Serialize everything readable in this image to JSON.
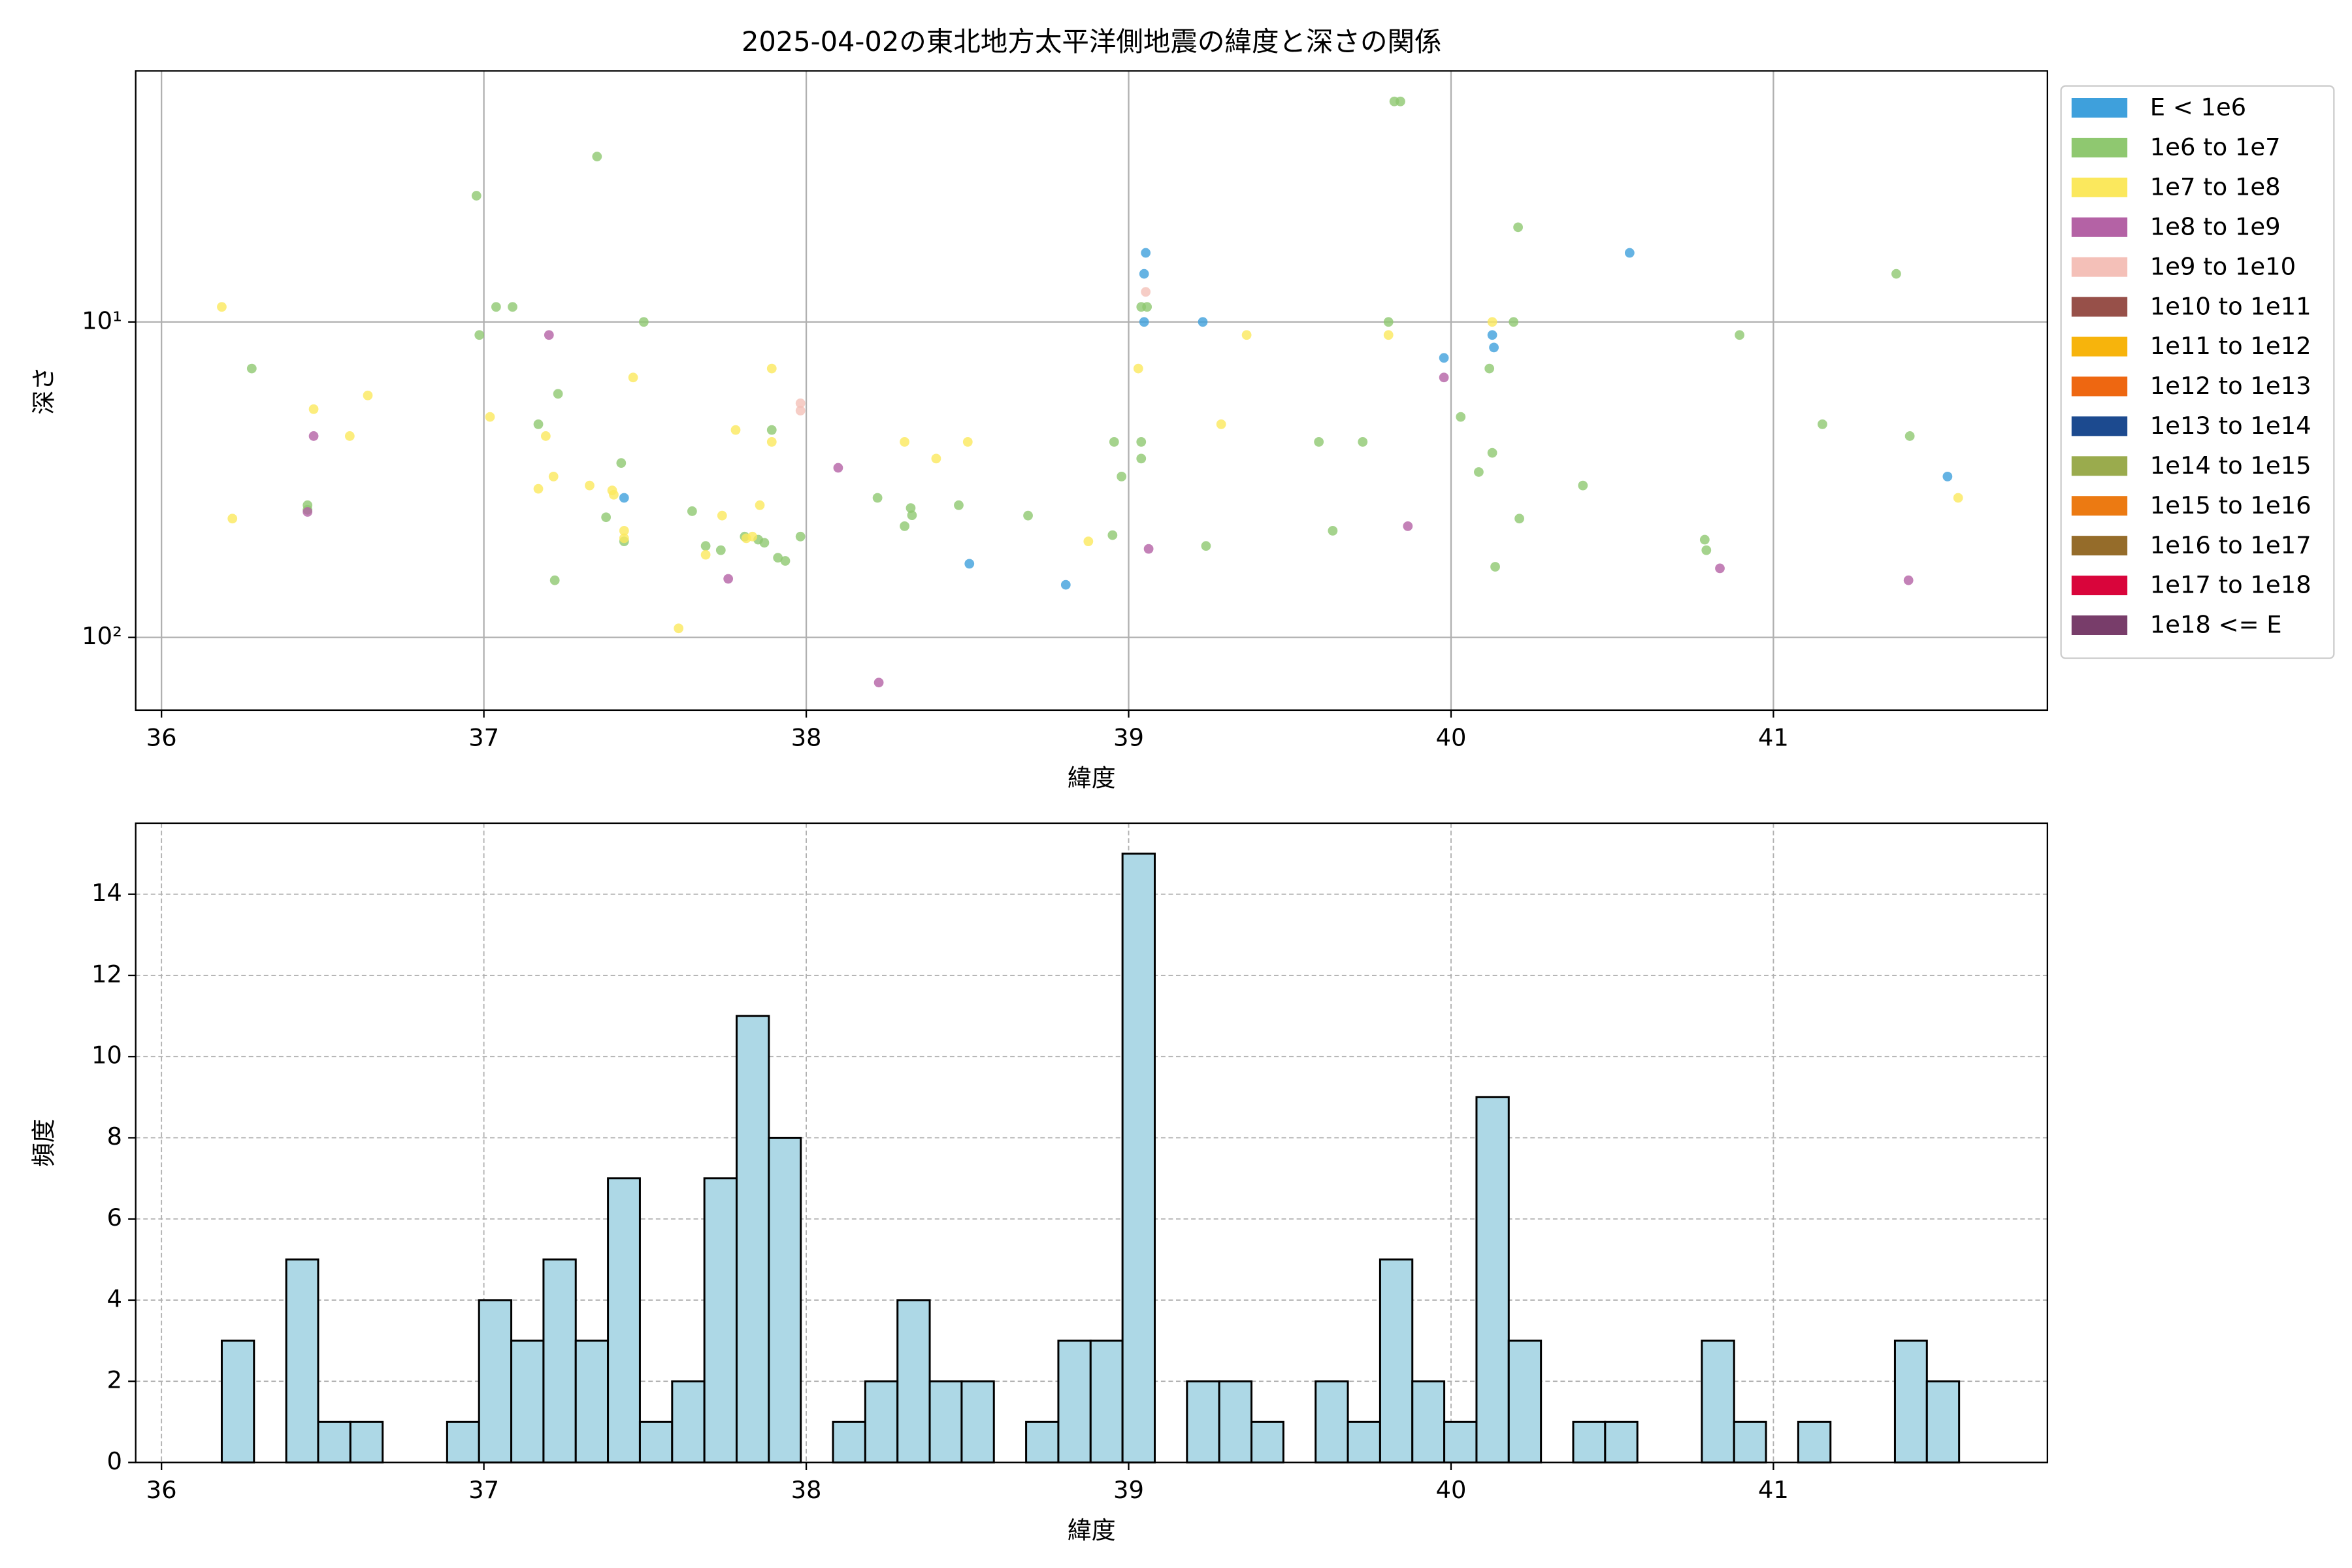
{
  "chart_data": [
    {
      "type": "scatter",
      "title": "2025-04-02の東北地方太平洋側地震の緯度と深さの関係",
      "xlabel": "緯度",
      "ylabel": "深さ",
      "xlim": [
        35.92,
        41.85
      ],
      "xticks": [
        36,
        37,
        38,
        39,
        40,
        41
      ],
      "ylim": [
        1.6,
        170
      ],
      "y_log": true,
      "y_inverted": true,
      "yticks": [
        {
          "value": 10,
          "label": "10¹"
        },
        {
          "value": 100,
          "label": "10²"
        }
      ],
      "grid": true,
      "legend": "outside right",
      "series": [
        {
          "name": "E < 1e6",
          "color": "#3ea0dc",
          "x": [
            37.435,
            38.506,
            38.805,
            39.053,
            39.048,
            39.048,
            39.23,
            39.978,
            40.128,
            40.133,
            40.554,
            41.54
          ],
          "values": [
            36.1,
            58.4,
            68.1,
            6.04,
            7.04,
            10,
            10,
            13.0,
            11.0,
            12.05,
            6.04,
            30.9
          ]
        },
        {
          "name": "1e6 to 1e7",
          "color": "#8fc870",
          "x": [
            36.977,
            37.351,
            39.824,
            39.843,
            40.208,
            41.381,
            36.986,
            37.038,
            37.089,
            37.496,
            36.28,
            37.169,
            37.23,
            37.426,
            36.453,
            36.453,
            37.379,
            37.435,
            37.22,
            37.646,
            37.688,
            37.735,
            37.809,
            37.851,
            37.87,
            37.893,
            37.912,
            37.935,
            37.982,
            38.221,
            38.305,
            38.324,
            38.328,
            38.473,
            38.688,
            38.95,
            38.955,
            38.978,
            39.039,
            39.039,
            39.039,
            39.057,
            39.24,
            39.59,
            39.633,
            39.726,
            39.806,
            40.03,
            40.086,
            40.119,
            40.128,
            40.137,
            40.194,
            40.212,
            40.409,
            40.787,
            40.792,
            40.895,
            41.152,
            41.423
          ],
          "values": [
            3.98,
            2.99,
            2.0,
            2.0,
            5.01,
            7.04,
            11.0,
            8.96,
            8.96,
            10,
            14.05,
            21.1,
            16.9,
            28.0,
            38.1,
            39.4,
            41.6,
            49.6,
            65.9,
            39.8,
            51.3,
            52.9,
            47.9,
            49.0,
            50.1,
            22.0,
            55.9,
            57.2,
            47.9,
            36.1,
            44.4,
            38.9,
            41.0,
            38.1,
            41.1,
            47.4,
            24.0,
            30.9,
            24.0,
            27.1,
            8.96,
            8.96,
            51.3,
            24.0,
            45.9,
            24.0,
            10,
            20.0,
            29.9,
            14.05,
            26.0,
            59.7,
            10,
            42.0,
            33.0,
            49.0,
            52.9,
            11.0,
            21.1,
            23.0
          ]
        },
        {
          "name": "1e7 to 1e8",
          "color": "#fbe85d",
          "x": [
            36.187,
            36.22,
            36.472,
            36.584,
            36.64,
            37.019,
            37.169,
            37.192,
            37.216,
            37.328,
            37.398,
            37.403,
            37.435,
            37.435,
            37.463,
            37.604,
            37.688,
            37.739,
            37.781,
            37.814,
            37.833,
            37.856,
            37.893,
            37.893,
            38.305,
            38.403,
            38.501,
            38.875,
            39.03,
            39.287,
            39.366,
            39.806,
            40.128,
            41.573
          ],
          "values": [
            8.96,
            42.0,
            18.9,
            23.0,
            17.1,
            20.0,
            33.8,
            23.0,
            30.9,
            33.0,
            34.2,
            35.3,
            45.9,
            48.5,
            15.0,
            93.6,
            54.7,
            41.1,
            22.0,
            48.5,
            47.9,
            38.1,
            14.05,
            24.0,
            24.0,
            27.1,
            24.0,
            49.6,
            14.05,
            21.1,
            11.0,
            11.0,
            10,
            36.1
          ]
        },
        {
          "name": "1e8 to 1e9",
          "color": "#b462a5",
          "x": [
            36.472,
            36.453,
            37.202,
            37.758,
            38.099,
            38.225,
            39.062,
            39.866,
            39.978,
            40.834,
            41.419
          ],
          "values": [
            23.0,
            40.0,
            11.0,
            65.2,
            29.0,
            139,
            52.4,
            44.4,
            15.0,
            60.4,
            65.9
          ]
        },
        {
          "name": "1e9 to 1e10",
          "color": "#f4c0b8",
          "x": [
            37.982,
            37.982,
            39.053
          ],
          "values": [
            18.1,
            19.1,
            8.03
          ]
        },
        {
          "name": "1e10 to 1e11",
          "color": "#975049",
          "x": [],
          "values": []
        },
        {
          "name": "1e11 to 1e12",
          "color": "#f7b40c",
          "x": [],
          "values": []
        },
        {
          "name": "1e12 to 1e13",
          "color": "#ee6711",
          "x": [],
          "values": []
        },
        {
          "name": "1e13 to 1e14",
          "color": "#1c4a8f",
          "x": [],
          "values": []
        },
        {
          "name": "1e14 to 1e15",
          "color": "#9aab4d",
          "x": [],
          "values": []
        },
        {
          "name": "1e15 to 1e16",
          "color": "#ec7a12",
          "x": [],
          "values": []
        },
        {
          "name": "1e16 to 1e17",
          "color": "#956c2a",
          "x": [],
          "values": []
        },
        {
          "name": "1e17 to 1e18",
          "color": "#d9053b",
          "x": [],
          "values": []
        },
        {
          "name": "1e18 <= E",
          "color": "#783d6a",
          "x": [],
          "values": []
        }
      ]
    },
    {
      "type": "histogram",
      "xlabel": "緯度",
      "ylabel": "頻度",
      "xlim": [
        35.92,
        41.85
      ],
      "xticks": [
        36,
        37,
        38,
        39,
        40,
        41
      ],
      "ylim": [
        0,
        15.75
      ],
      "yticks": [
        0,
        2,
        4,
        6,
        8,
        10,
        12,
        14
      ],
      "grid": true,
      "color": "#add8e6",
      "edgecolor": "#000000",
      "bins": [
        36.187,
        36.287,
        36.387,
        36.486,
        36.586,
        36.686,
        36.786,
        36.886,
        36.985,
        37.085,
        37.185,
        37.285,
        37.385,
        37.484,
        37.584,
        37.684,
        37.784,
        37.884,
        37.983,
        38.083,
        38.183,
        38.283,
        38.383,
        38.482,
        38.582,
        38.682,
        38.782,
        38.882,
        38.981,
        39.081,
        39.181,
        39.281,
        39.381,
        39.48,
        39.58,
        39.68,
        39.78,
        39.88,
        39.979,
        40.079,
        40.179,
        40.279,
        40.379,
        40.478,
        40.578,
        40.678,
        40.778,
        40.878,
        40.977,
        41.077,
        41.177,
        41.277,
        41.377,
        41.476,
        41.576
      ],
      "values": [
        3,
        0,
        5,
        1,
        1,
        0,
        0,
        1,
        4,
        3,
        5,
        3,
        7,
        1,
        2,
        7,
        11,
        8,
        0,
        1,
        2,
        4,
        2,
        2,
        0,
        1,
        3,
        3,
        15,
        0,
        2,
        2,
        1,
        0,
        2,
        1,
        5,
        2,
        1,
        9,
        3,
        0,
        1,
        1,
        0,
        0,
        3,
        1,
        0,
        1,
        0,
        0,
        3,
        2
      ]
    }
  ]
}
